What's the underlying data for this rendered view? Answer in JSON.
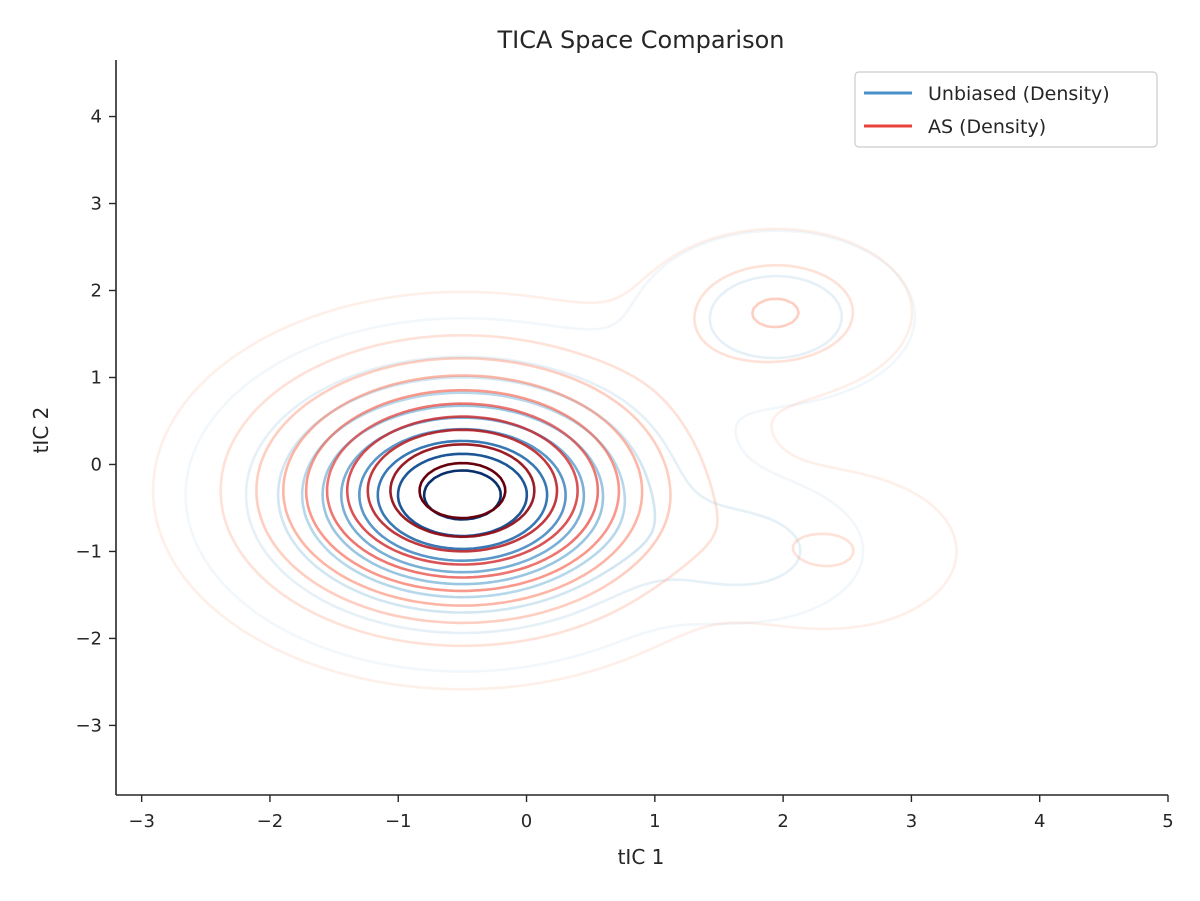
{
  "chart_data": {
    "type": "contour",
    "title": "TICA Space Comparison",
    "xlabel": "tIC 1",
    "ylabel": "tIC 2",
    "xlim": [
      -3.2,
      5.0
    ],
    "ylim": [
      -3.8,
      4.65
    ],
    "xticks": [
      -3,
      -2,
      -1,
      0,
      1,
      2,
      3,
      4,
      5
    ],
    "yticks": [
      -3,
      -2,
      -1,
      0,
      1,
      2,
      3,
      4
    ],
    "xtick_labels": [
      "−3",
      "−2",
      "−1",
      "0",
      "1",
      "2",
      "3",
      "4",
      "5"
    ],
    "ytick_labels": [
      "−3",
      "−2",
      "−1",
      "0",
      "1",
      "2",
      "3",
      "4"
    ],
    "grid": false,
    "legend_position": "top-right",
    "series": [
      {
        "name": "Unbiased (Density)",
        "legend_color": "#4a90c8",
        "colormap": "Blues",
        "levels": 10,
        "components": [
          {
            "center": [
              -0.5,
              -0.35
            ],
            "sigma": [
              0.85,
              0.8
            ],
            "weight": 1.0
          },
          {
            "center": [
              1.75,
              -1.0
            ],
            "sigma": [
              0.5,
              0.45
            ],
            "weight": 0.18
          },
          {
            "center": [
              1.95,
              1.7
            ],
            "sigma": [
              0.6,
              0.55
            ],
            "weight": 0.2
          }
        ]
      },
      {
        "name": "AS (Density)",
        "legend_color": "#e8423a",
        "colormap": "Reds",
        "levels": 10,
        "components": [
          {
            "center": [
              -0.5,
              -0.3
            ],
            "sigma": [
              0.95,
              0.9
            ],
            "weight": 1.0
          },
          {
            "center": [
              1.95,
              1.75
            ],
            "sigma": [
              0.55,
              0.5
            ],
            "weight": 0.25
          },
          {
            "center": [
              2.4,
              -1.0
            ],
            "sigma": [
              0.6,
              0.55
            ],
            "weight": 0.14
          }
        ]
      }
    ]
  }
}
